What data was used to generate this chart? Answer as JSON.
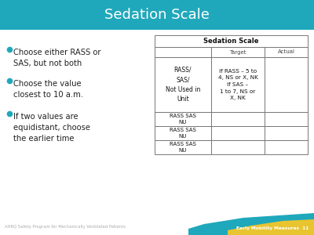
{
  "title": "Sedation Scale",
  "title_color": "#ffffff",
  "title_bg_color": "#1fa8bb",
  "slide_bg_color": "#ffffff",
  "bullet_points": [
    "Choose either RASS or\nSAS, but not both",
    "Choose the value\nclosest to 10 a.m.",
    "If two values are\nequidistant, choose\nthe earlier time"
  ],
  "bullet_color": "#1fa8bb",
  "bullet_text_color": "#222222",
  "table_title": "Sedation Scale",
  "table_col1_header": "RASS/\nSAS/\nNot Used in\nUnit",
  "table_col2_header": "Target",
  "table_col3_header": "Actual",
  "table_row1_col2": "If RASS – 5 to\n4, NS or X, NK\nIf SAS –\n1 to 7, NS or\nX, NK",
  "table_data_rows": [
    [
      "RASS SAS\nNU",
      "",
      ""
    ],
    [
      "RASS SAS\nNU",
      "",
      ""
    ],
    [
      "RASS SAS\nNU",
      "",
      ""
    ]
  ],
  "footer_left": "AHRQ Safety Program for Mechanically Ventilated Patients",
  "footer_right": "Early Mobility Measures  11",
  "footer_text_color": "#aaaaaa",
  "footer_right_color": "#ffffff",
  "footer_right_bg": "#1fa8bb",
  "accent_gold_color": "#e8c430",
  "teal_bar_color": "#1fa8bb"
}
